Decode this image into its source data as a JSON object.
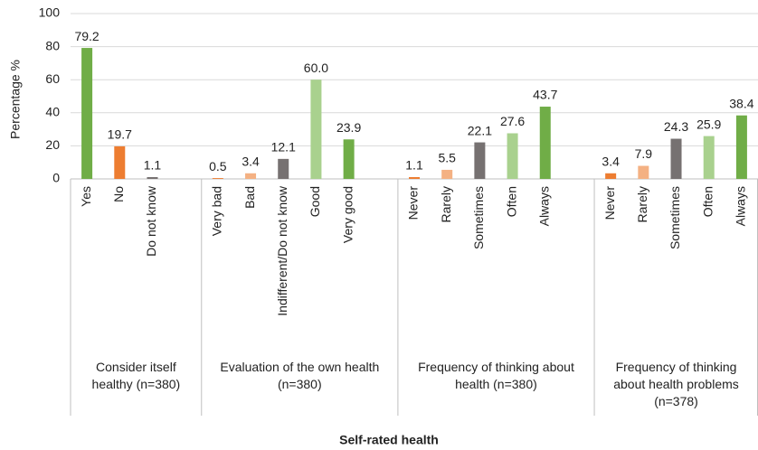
{
  "chart_data": {
    "type": "grouped-bar",
    "y_label": "Percentage %",
    "x_label": "Self-rated health",
    "ylim": [
      0,
      100
    ],
    "yticks": [
      0,
      20,
      40,
      60,
      80,
      100
    ],
    "grid": true,
    "groups": [
      {
        "label": "Consider itself healthy (n=380)",
        "categories": [
          "Yes",
          "No",
          "Do not know"
        ],
        "values": [
          79.2,
          19.7,
          1.1
        ],
        "value_labels": [
          "79.2",
          "19.7",
          "1.1"
        ],
        "colors": [
          "#70AD47",
          "#ED7D31",
          "#767171"
        ]
      },
      {
        "label": "Evaluation of the own health (n=380)",
        "categories": [
          "Very bad",
          "Bad",
          "Indifferent/Do not know",
          "Good",
          "Very good"
        ],
        "values": [
          0.5,
          3.4,
          12.1,
          60.0,
          23.9
        ],
        "value_labels": [
          "0.5",
          "3.4",
          "12.1",
          "60.0",
          "23.9"
        ],
        "colors": [
          "#ED7D31",
          "#F4B183",
          "#767171",
          "#A9D18E",
          "#70AD47"
        ]
      },
      {
        "label": "Frequency of thinking about health (n=380)",
        "categories": [
          "Never",
          "Rarely",
          "Sometimes",
          "Often",
          "Always"
        ],
        "values": [
          1.1,
          5.5,
          22.1,
          27.6,
          43.7
        ],
        "value_labels": [
          "1.1",
          "5.5",
          "22.1",
          "27.6",
          "43.7"
        ],
        "colors": [
          "#ED7D31",
          "#F4B183",
          "#767171",
          "#A9D18E",
          "#70AD47"
        ]
      },
      {
        "label": "Frequency of thinking about health problems (n=378)",
        "categories": [
          "Never",
          "Rarely",
          "Sometimes",
          "Often",
          "Always"
        ],
        "values": [
          3.4,
          7.9,
          24.3,
          25.9,
          38.4
        ],
        "value_labels": [
          "3.4",
          "7.9",
          "24.3",
          "25.9",
          "38.4"
        ],
        "colors": [
          "#ED7D31",
          "#F4B183",
          "#767171",
          "#A9D18E",
          "#70AD47"
        ]
      }
    ]
  }
}
